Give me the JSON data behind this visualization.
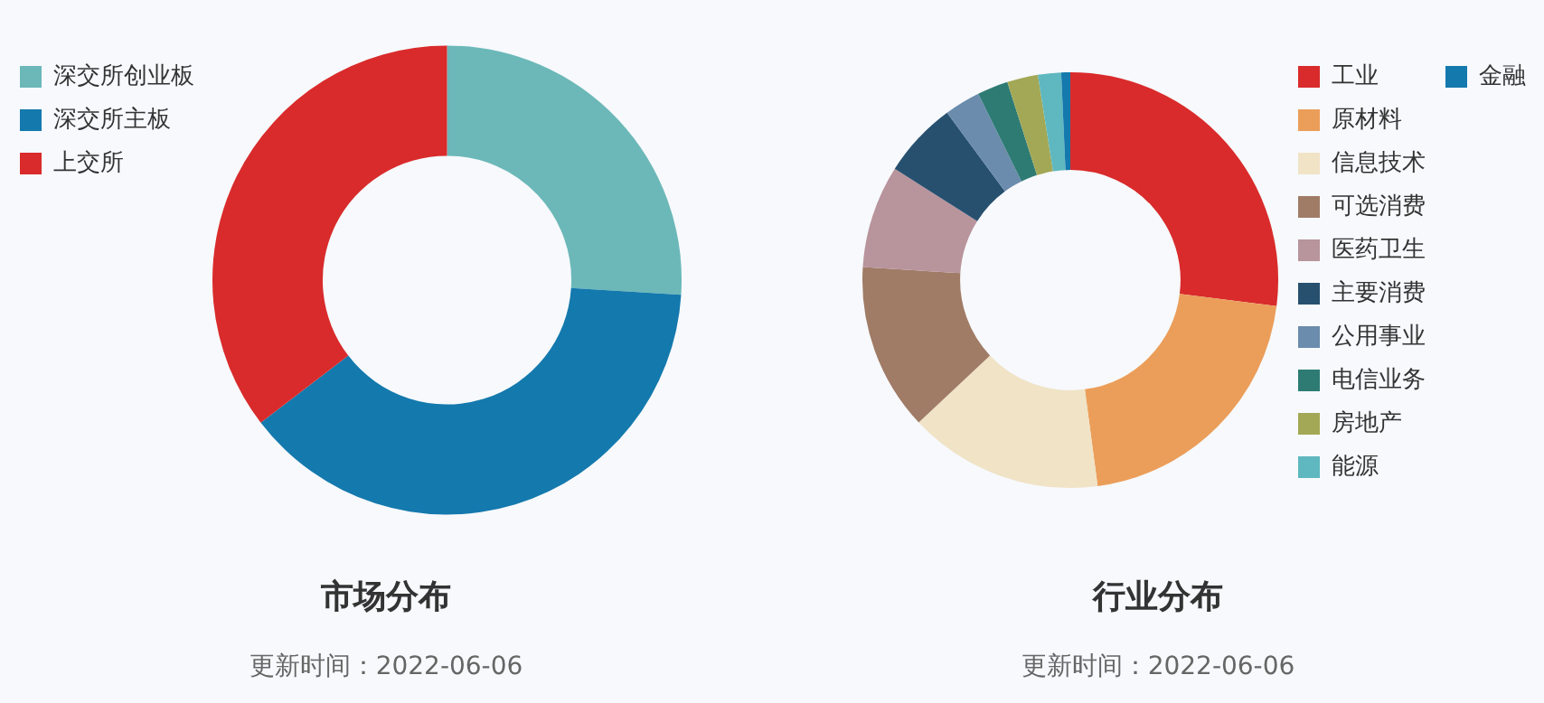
{
  "chart_data": [
    {
      "type": "donut",
      "title": "市场分布",
      "subtitle": "更新时间：2022-06-06",
      "categories": [
        "深交所创业板",
        "深交所主板",
        "上交所"
      ],
      "values": [
        26,
        38.6,
        35.4
      ],
      "colors": [
        "#6cb8b9",
        "#1479ad",
        "#d92b2b"
      ],
      "legend": "top left"
    },
    {
      "type": "donut",
      "title": "行业分布",
      "subtitle": "更新时间：2022-06-06",
      "categories": [
        "工业",
        "原材料",
        "信息技术",
        "可选消费",
        "医药卫生",
        "主要消费",
        "公用事业",
        "电信业务",
        "房地产",
        "能源",
        "金融"
      ],
      "values": [
        27,
        20.9,
        15.1,
        13,
        8,
        5.9,
        2.8,
        2.4,
        2.4,
        1.8,
        0.7
      ],
      "colors": [
        "#d92b2b",
        "#eb9e5a",
        "#f0e3c6",
        "#a07b66",
        "#b8949c",
        "#27506f",
        "#6b8cac",
        "#2e7b74",
        "#a3a856",
        "#5fb8bf",
        "#1479ad"
      ],
      "legend": "right"
    }
  ]
}
